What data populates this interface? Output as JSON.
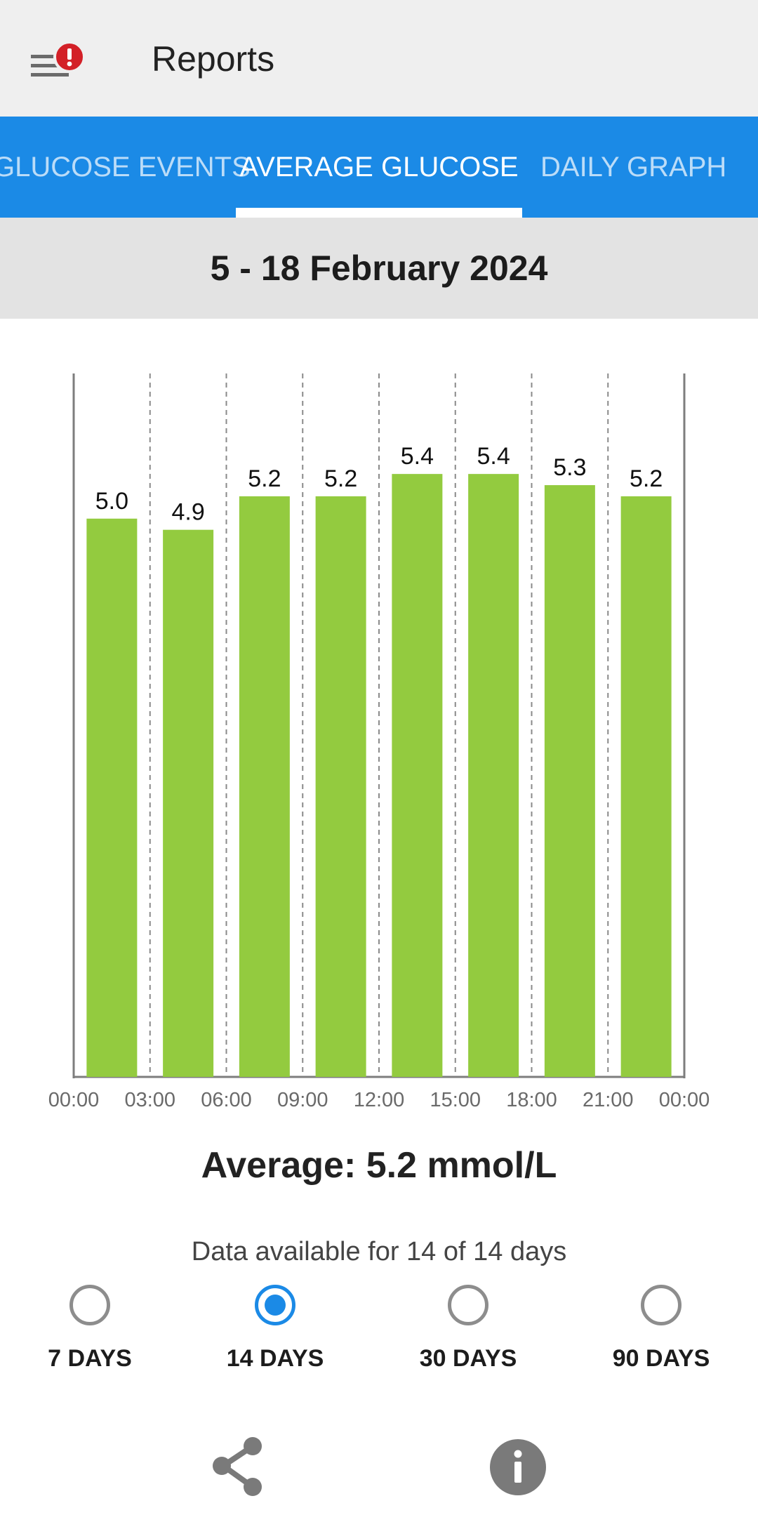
{
  "appbar": {
    "title": "Reports",
    "menu_icon": "hamburger-icon",
    "badge_icon": "alert-icon",
    "badge_color": "#d32027"
  },
  "tabs": [
    {
      "label": "GLUCOSE EVENTS",
      "active": false
    },
    {
      "label": "AVERAGE GLUCOSE",
      "active": true
    },
    {
      "label": "DAILY GRAPH",
      "active": false
    }
  ],
  "date_range": "5 - 18 February 2024",
  "chart_data": {
    "type": "bar",
    "x_ticks": [
      "00:00",
      "03:00",
      "06:00",
      "09:00",
      "12:00",
      "15:00",
      "18:00",
      "21:00",
      "00:00"
    ],
    "bins": [
      "00:00–03:00",
      "03:00–06:00",
      "06:00–09:00",
      "09:00–12:00",
      "12:00–15:00",
      "15:00–18:00",
      "18:00–21:00",
      "21:00–00:00"
    ],
    "values": [
      5.0,
      4.9,
      5.2,
      5.2,
      5.4,
      5.4,
      5.3,
      5.2
    ],
    "value_labels": [
      "5.0",
      "4.9",
      "5.2",
      "5.2",
      "5.4",
      "5.4",
      "5.3",
      "5.2"
    ],
    "ylim": [
      0,
      6.3
    ],
    "bar_color": "#93cb3f",
    "grid": "dashed vertical"
  },
  "summary": {
    "average_label": "Average: 5.2 mmol/L",
    "availability": "Data available for 14 of 14 days"
  },
  "periods": [
    {
      "label": "7 DAYS",
      "selected": false
    },
    {
      "label": "14 DAYS",
      "selected": true
    },
    {
      "label": "30 DAYS",
      "selected": false
    },
    {
      "label": "90 DAYS",
      "selected": false
    }
  ],
  "actions": {
    "share_icon": "share-icon",
    "info_icon": "info-icon"
  },
  "colors": {
    "accent": "#1b8ae6",
    "tab_bar": "#1b8ae6",
    "radio_off": "#8d8d8d",
    "icon_gray": "#7a7a7a"
  }
}
